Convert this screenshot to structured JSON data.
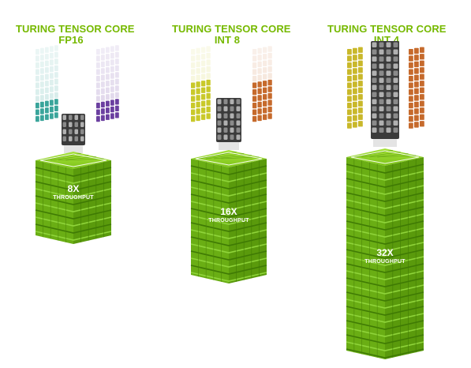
{
  "columns": [
    {
      "title": "TURING TENSOR CORE",
      "subtitle": "FP16",
      "throughput_value": "8X",
      "throughput_label": "THROUGHPUT",
      "colors": {
        "left": "#3aa59b",
        "right": "#6b3fa0"
      }
    },
    {
      "title": "TURING TENSOR CORE",
      "subtitle": "INT 8",
      "throughput_value": "16X",
      "throughput_label": "THROUGHPUT",
      "colors": {
        "left": "#c9c92a",
        "right": "#c66a2c"
      }
    },
    {
      "title": "TURING TENSOR CORE",
      "subtitle": "INT 4",
      "throughput_value": "32X",
      "throughput_label": "THROUGHPUT",
      "colors": {
        "left": "#c9b82a",
        "right": "#c66a2c"
      }
    }
  ],
  "colors": {
    "accent": "#76b900",
    "cube_dark": "#4d8a00",
    "core_gray": "#555555"
  }
}
